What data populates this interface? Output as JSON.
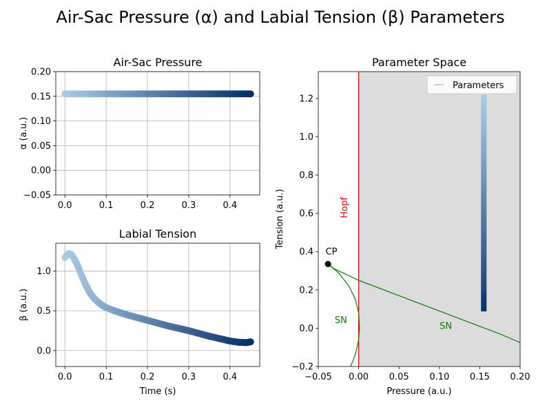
{
  "figure": {
    "title": "Air-Sac Pressure (α) and Labial Tension (β) Parameters"
  },
  "chart_data": [
    {
      "id": "alpha",
      "type": "scatter",
      "title": "Air-Sac Pressure",
      "xlabel": "",
      "ylabel": "α (a.u.)",
      "xlim": [
        -0.022,
        0.472
      ],
      "ylim": [
        -0.05,
        0.2
      ],
      "xticks": [
        "0.0",
        "0.1",
        "0.2",
        "0.3",
        "0.4"
      ],
      "xtick_values": [
        0,
        0.1,
        0.2,
        0.3,
        0.4
      ],
      "yticks": [
        "−0.05",
        "0.00",
        "0.05",
        "0.10",
        "0.15",
        "0.20"
      ],
      "ytick_values": [
        -0.05,
        0,
        0.05,
        0.1,
        0.15,
        0.2
      ],
      "grid": true,
      "colormap": "Blues",
      "series": [
        {
          "x_range": [
            0.0,
            0.45
          ],
          "y": 0.155
        }
      ]
    },
    {
      "id": "beta",
      "type": "scatter",
      "title": "Labial Tension",
      "xlabel": "Time (s)",
      "ylabel": "β (a.u.)",
      "xlim": [
        -0.022,
        0.472
      ],
      "ylim": [
        -0.2,
        1.35
      ],
      "xticks": [
        "0.0",
        "0.1",
        "0.2",
        "0.3",
        "0.4"
      ],
      "xtick_values": [
        0,
        0.1,
        0.2,
        0.3,
        0.4
      ],
      "yticks": [
        "0.0",
        "0.5",
        "1.0"
      ],
      "ytick_values": [
        0,
        0.5,
        1.0
      ],
      "grid": true,
      "colormap": "Blues",
      "series": [
        {
          "x": [
            0.0,
            0.005,
            0.01,
            0.015,
            0.02,
            0.03,
            0.04,
            0.05,
            0.06,
            0.07,
            0.08,
            0.09,
            0.1,
            0.12,
            0.15,
            0.2,
            0.25,
            0.3,
            0.35,
            0.4,
            0.42,
            0.44,
            0.45
          ],
          "y": [
            1.17,
            1.2,
            1.22,
            1.21,
            1.18,
            1.08,
            0.95,
            0.83,
            0.73,
            0.66,
            0.61,
            0.57,
            0.54,
            0.5,
            0.45,
            0.38,
            0.31,
            0.25,
            0.18,
            0.12,
            0.105,
            0.1,
            0.11
          ]
        }
      ]
    },
    {
      "id": "param",
      "type": "line",
      "title": "Parameter Space",
      "xlabel": "Pressure (a.u.)",
      "ylabel": "Tension (a.u.)",
      "xlim": [
        -0.05,
        0.2
      ],
      "ylim": [
        -0.2,
        1.34
      ],
      "xticks": [
        "−0.05",
        "0.00",
        "0.05",
        "0.10",
        "0.15",
        "0.20"
      ],
      "xtick_values": [
        -0.05,
        0,
        0.05,
        0.1,
        0.15,
        0.2
      ],
      "yticks": [
        "−0.2",
        "0.0",
        "0.2",
        "0.4",
        "0.6",
        "0.8",
        "1.0",
        "1.2"
      ],
      "ytick_values": [
        -0.2,
        0,
        0.2,
        0.4,
        0.6,
        0.8,
        1.0,
        1.2
      ],
      "grid": false,
      "legend": {
        "label": "Parameters",
        "placement": "upper right"
      },
      "shaded_region": {
        "x_from": 0,
        "color": "#dcdcdc"
      },
      "hopf_line": {
        "x": 0,
        "color": "#ff0000",
        "label": "Hopf"
      },
      "cp_point": {
        "x": -0.038,
        "y": 0.335,
        "label": "CP"
      },
      "sn_upper": {
        "label": "SN",
        "color": "#008000",
        "x": [
          -0.038,
          -0.03,
          -0.02,
          -0.01,
          0.0,
          0.025,
          0.05,
          0.075,
          0.1,
          0.125,
          0.15,
          0.175,
          0.2
        ],
        "y": [
          0.335,
          0.31,
          0.29,
          0.27,
          0.25,
          0.21,
          0.17,
          0.13,
          0.09,
          0.05,
          0.01,
          -0.03,
          -0.075
        ]
      },
      "sn_lower": {
        "label": "SN",
        "color": "#008000",
        "x": [
          -0.038,
          -0.025,
          -0.012,
          -0.004,
          0.0,
          0.001,
          0.0,
          -0.003,
          -0.007,
          -0.01
        ],
        "y": [
          0.335,
          0.29,
          0.22,
          0.15,
          0.08,
          0.0,
          -0.06,
          -0.12,
          -0.17,
          -0.2
        ]
      },
      "parameters": {
        "x": 0.155,
        "y_from": 0.09,
        "y_to": 1.22
      }
    }
  ]
}
